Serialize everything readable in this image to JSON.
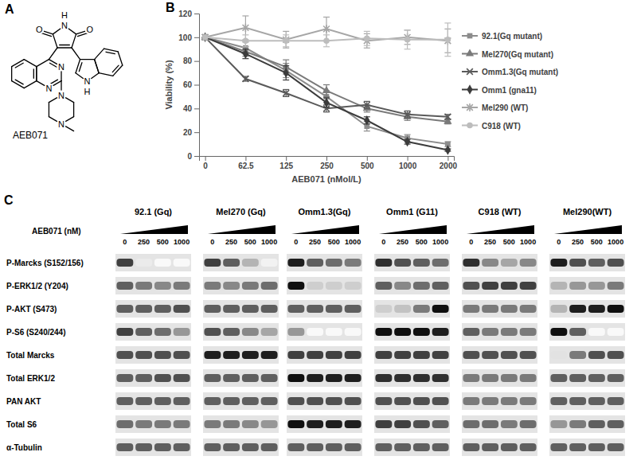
{
  "panel_a": {
    "label": "A",
    "compound": "AEB071",
    "atoms": [
      "O",
      "O",
      "N",
      "H",
      "N",
      "N",
      "N",
      "N",
      "N",
      "H"
    ]
  },
  "panel_b": {
    "label": "B"
  },
  "chart_data": {
    "type": "line",
    "x_label": "AEB071 (nMol/L)",
    "y_label": "Viability (%)",
    "categories": [
      "0",
      "62.5",
      "125",
      "250",
      "500",
      "1000",
      "2000"
    ],
    "ylim": [
      0,
      120
    ],
    "yticks": [
      0,
      20,
      40,
      60,
      80,
      100,
      120
    ],
    "grid": false,
    "legend": "right",
    "series": [
      {
        "name": "92.1(Gq mutant)",
        "color": "#8c8c8c",
        "marker": "square",
        "values": [
          100,
          91,
          72,
          50,
          25,
          15,
          10
        ],
        "errors": [
          0,
          5,
          6,
          5,
          4,
          3,
          2
        ]
      },
      {
        "name": "Mel270(Gq mutant)",
        "color": "#7a7a7a",
        "marker": "triangle",
        "values": [
          100,
          88,
          75,
          55,
          40,
          33,
          29
        ],
        "errors": [
          0,
          4,
          6,
          5,
          3,
          3,
          2
        ]
      },
      {
        "name": "Omm1.3(Gq mutant)",
        "color": "#5a5a5a",
        "marker": "x",
        "values": [
          100,
          65,
          53,
          40,
          43,
          35,
          33
        ],
        "errors": [
          0,
          2,
          3,
          3,
          3,
          3,
          2
        ]
      },
      {
        "name": "Omm1 (gna11)",
        "color": "#3c3c3c",
        "marker": "diamond",
        "values": [
          100,
          86,
          70,
          45,
          30,
          12,
          5
        ],
        "errors": [
          0,
          4,
          6,
          4,
          3,
          2,
          1
        ]
      },
      {
        "name": "Mel290 (WT)",
        "color": "#a6a6a6",
        "marker": "asterisk",
        "values": [
          100,
          108,
          98,
          107,
          97,
          100,
          97
        ],
        "errors": [
          0,
          10,
          7,
          10,
          6,
          6,
          10
        ]
      },
      {
        "name": "C918 (WT)",
        "color": "#bdbdbd",
        "marker": "circle",
        "values": [
          100,
          97,
          97,
          97,
          99,
          98,
          98
        ],
        "errors": [
          0,
          5,
          5,
          5,
          6,
          8,
          14
        ]
      }
    ]
  },
  "panel_c": {
    "label": "C",
    "dose_label": "AEB071 (nM)",
    "doses": [
      0,
      250,
      500,
      1000
    ],
    "rows": [
      "P-Marcks (S152/156)",
      "P-ERK1/2 (Y204)",
      "P-AKT (S473)",
      "P-S6 (S240/244)",
      "Total Marcks",
      "Total ERK1/2",
      "PAN AKT",
      "Total S6",
      "α-Tubulin"
    ],
    "blots": [
      {
        "name": "92.1 (Gq)",
        "bands": [
          [
            0.8,
            0.15,
            0.05,
            0.05
          ],
          [
            0.7,
            0.6,
            0.55,
            0.6
          ],
          [
            0.7,
            0.7,
            0.7,
            0.75
          ],
          [
            0.8,
            0.7,
            0.65,
            0.5
          ],
          [
            0.75,
            0.75,
            0.75,
            0.75
          ],
          [
            0.7,
            0.7,
            0.75,
            0.75
          ],
          [
            0.7,
            0.7,
            0.7,
            0.7
          ],
          [
            0.65,
            0.6,
            0.6,
            0.6
          ],
          [
            0.7,
            0.7,
            0.7,
            0.7
          ]
        ]
      },
      {
        "name": "Mel270 (Gq)",
        "bands": [
          [
            0.8,
            0.7,
            0.4,
            0.1
          ],
          [
            0.6,
            0.55,
            0.6,
            0.65
          ],
          [
            0.7,
            0.7,
            0.7,
            0.7
          ],
          [
            0.75,
            0.7,
            0.55,
            0.45
          ],
          [
            0.9,
            0.9,
            0.9,
            0.9
          ],
          [
            0.7,
            0.7,
            0.7,
            0.7
          ],
          [
            0.7,
            0.7,
            0.7,
            0.7
          ],
          [
            0.6,
            0.6,
            0.55,
            0.5
          ],
          [
            0.7,
            0.7,
            0.7,
            0.7
          ]
        ]
      },
      {
        "name": "Omm1.3(Gq)",
        "bands": [
          [
            0.9,
            0.7,
            0.65,
            0.6
          ],
          [
            0.95,
            0.3,
            0.3,
            0.3
          ],
          [
            0.7,
            0.7,
            0.7,
            0.7
          ],
          [
            0.5,
            0.05,
            0.05,
            0.05
          ],
          [
            0.8,
            0.8,
            0.8,
            0.8
          ],
          [
            0.95,
            0.9,
            0.9,
            0.9
          ],
          [
            0.75,
            0.75,
            0.75,
            0.75
          ],
          [
            0.95,
            0.9,
            0.9,
            0.9
          ],
          [
            0.7,
            0.7,
            0.7,
            0.7
          ]
        ]
      },
      {
        "name": "Omm1 (G11)",
        "bands": [
          [
            0.85,
            0.75,
            0.7,
            0.65
          ],
          [
            0.7,
            0.55,
            0.65,
            0.7
          ],
          [
            0.3,
            0.35,
            0.6,
            0.95
          ],
          [
            0.95,
            0.95,
            0.95,
            0.9
          ],
          [
            0.8,
            0.8,
            0.8,
            0.8
          ],
          [
            0.85,
            0.85,
            0.85,
            0.85
          ],
          [
            0.75,
            0.75,
            0.75,
            0.75
          ],
          [
            0.8,
            0.8,
            0.75,
            0.7
          ],
          [
            0.7,
            0.7,
            0.7,
            0.7
          ]
        ]
      },
      {
        "name": "C918 (WT)",
        "bands": [
          [
            0.85,
            0.55,
            0.45,
            0.55
          ],
          [
            0.75,
            0.8,
            0.8,
            0.8
          ],
          [
            0.6,
            0.6,
            0.6,
            0.6
          ],
          [
            0.7,
            0.6,
            0.6,
            0.6
          ],
          [
            0.75,
            0.75,
            0.75,
            0.75
          ],
          [
            0.6,
            0.6,
            0.6,
            0.6
          ],
          [
            0.6,
            0.6,
            0.6,
            0.6
          ],
          [
            0.65,
            0.65,
            0.6,
            0.65
          ],
          [
            0.7,
            0.7,
            0.7,
            0.7
          ]
        ]
      },
      {
        "name": "Mel290(WT)",
        "bands": [
          [
            0.9,
            0.75,
            0.7,
            0.75
          ],
          [
            0.4,
            0.5,
            0.5,
            0.6
          ],
          [
            0.4,
            0.9,
            0.9,
            0.95
          ],
          [
            0.95,
            0.7,
            0.05,
            0.05
          ],
          [
            0.2,
            0.6,
            0.75,
            0.75
          ],
          [
            0.7,
            0.7,
            0.7,
            0.7
          ],
          [
            0.7,
            0.7,
            0.7,
            0.7
          ],
          [
            0.5,
            0.6,
            0.7,
            0.7
          ],
          [
            0.7,
            0.7,
            0.7,
            0.7
          ]
        ]
      }
    ]
  }
}
